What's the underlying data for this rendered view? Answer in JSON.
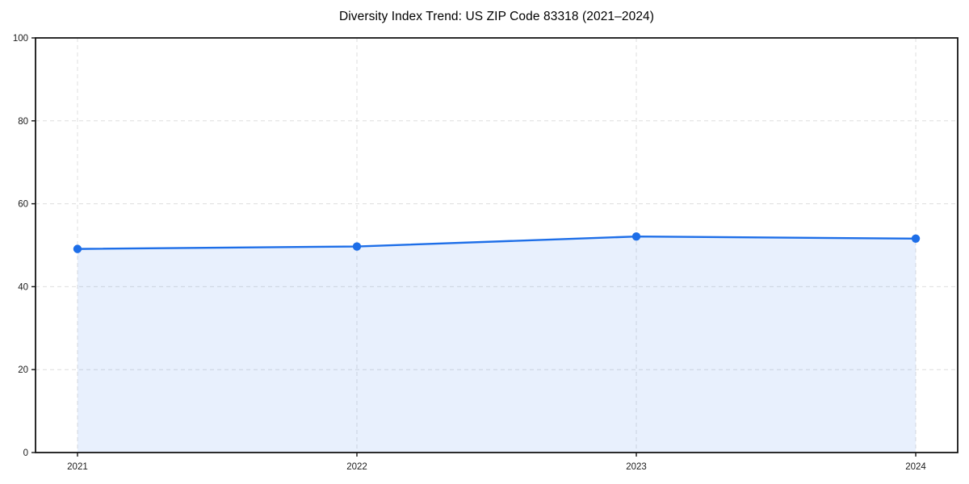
{
  "chart_data": {
    "type": "area",
    "title": "Diversity Index Trend: US ZIP Code 83318 (2021–2024)",
    "categories": [
      "2021",
      "2022",
      "2023",
      "2024"
    ],
    "values": [
      49.1,
      49.7,
      52.1,
      51.6
    ],
    "xlabel": "",
    "ylabel": "",
    "ylim": [
      0,
      100
    ],
    "yticks": [
      0,
      20,
      40,
      60,
      80,
      100
    ],
    "grid": {
      "horizontal": true,
      "vertical": true,
      "style": "dashed"
    },
    "legend": "none",
    "marker": "circle",
    "colors": {
      "line": "#1d6ee8",
      "marker": "#1d6ee8",
      "fill": "rgba(29,110,232,0.10)",
      "grid": "#dedede",
      "spine": "#141414",
      "tick_text": "#1a1a1a",
      "title_text": "#000000",
      "background": "#ffffff"
    }
  }
}
